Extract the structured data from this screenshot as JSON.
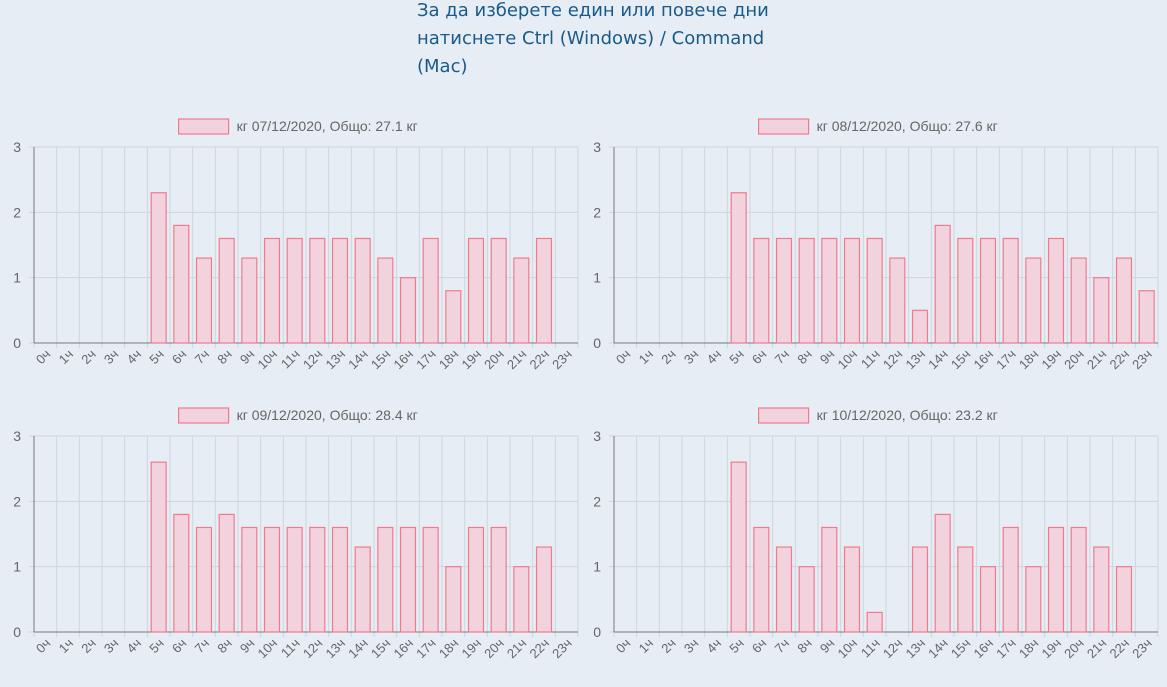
{
  "instructions": "За да изберете един или повече дни натиснете Ctrl (Windows) / Command (Mac)",
  "colors": {
    "bar_fill": "#f2d2dc",
    "bar_stroke": "#f07a8e",
    "grid": "#cfd5dc",
    "axis": "#7a7a7a",
    "text": "#666666"
  },
  "chart_data": [
    {
      "type": "bar",
      "title": "кг 07/12/2020, Общо: 27.1 кг",
      "categories": [
        "0ч",
        "1ч",
        "2ч",
        "3ч",
        "4ч",
        "5ч",
        "6ч",
        "7ч",
        "8ч",
        "9ч",
        "10ч",
        "11ч",
        "12ч",
        "13ч",
        "14ч",
        "15ч",
        "16ч",
        "17ч",
        "18ч",
        "19ч",
        "20ч",
        "21ч",
        "22ч",
        "23ч"
      ],
      "values": [
        0,
        0,
        0,
        0,
        0,
        2.3,
        1.8,
        1.3,
        1.6,
        1.3,
        1.6,
        1.6,
        1.6,
        1.6,
        1.6,
        1.3,
        1.0,
        1.6,
        0.8,
        1.6,
        1.6,
        1.3,
        1.6,
        0
      ],
      "y_ticks": [
        "0",
        "1",
        "2",
        "3"
      ],
      "ylim": [
        0,
        3
      ]
    },
    {
      "type": "bar",
      "title": "кг 08/12/2020, Общо: 27.6 кг",
      "categories": [
        "0ч",
        "1ч",
        "2ч",
        "3ч",
        "4ч",
        "5ч",
        "6ч",
        "7ч",
        "8ч",
        "9ч",
        "10ч",
        "11ч",
        "12ч",
        "13ч",
        "14ч",
        "15ч",
        "16ч",
        "17ч",
        "18ч",
        "19ч",
        "20ч",
        "21ч",
        "22ч",
        "23ч"
      ],
      "values": [
        0,
        0,
        0,
        0,
        0,
        2.3,
        1.6,
        1.6,
        1.6,
        1.6,
        1.6,
        1.6,
        1.3,
        0.5,
        1.8,
        1.6,
        1.6,
        1.6,
        1.3,
        1.6,
        1.3,
        1.0,
        1.3,
        0.8
      ],
      "y_ticks": [
        "0",
        "1",
        "2",
        "3"
      ],
      "ylim": [
        0,
        3
      ]
    },
    {
      "type": "bar",
      "title": "кг 09/12/2020, Общо: 28.4 кг",
      "categories": [
        "0ч",
        "1ч",
        "2ч",
        "3ч",
        "4ч",
        "5ч",
        "6ч",
        "7ч",
        "8ч",
        "9ч",
        "10ч",
        "11ч",
        "12ч",
        "13ч",
        "14ч",
        "15ч",
        "16ч",
        "17ч",
        "18ч",
        "19ч",
        "20ч",
        "21ч",
        "22ч",
        "23ч"
      ],
      "values": [
        0,
        0,
        0,
        0,
        0,
        2.6,
        1.8,
        1.6,
        1.8,
        1.6,
        1.6,
        1.6,
        1.6,
        1.6,
        1.3,
        1.6,
        1.6,
        1.6,
        1.0,
        1.6,
        1.6,
        1.0,
        1.3,
        0
      ],
      "y_ticks": [
        "0",
        "1",
        "2",
        "3"
      ],
      "ylim": [
        0,
        3
      ]
    },
    {
      "type": "bar",
      "title": "кг 10/12/2020, Общо: 23.2 кг",
      "categories": [
        "0ч",
        "1ч",
        "2ч",
        "3ч",
        "4ч",
        "5ч",
        "6ч",
        "7ч",
        "8ч",
        "9ч",
        "10ч",
        "11ч",
        "12ч",
        "13ч",
        "14ч",
        "15ч",
        "16ч",
        "17ч",
        "18ч",
        "19ч",
        "20ч",
        "21ч",
        "22ч",
        "23ч"
      ],
      "values": [
        0,
        0,
        0,
        0,
        0,
        2.6,
        1.6,
        1.3,
        1.0,
        1.6,
        1.3,
        0.3,
        0,
        1.3,
        1.8,
        1.3,
        1.0,
        1.6,
        1.0,
        1.6,
        1.6,
        1.3,
        1.0,
        0
      ],
      "y_ticks": [
        "0",
        "1",
        "2",
        "3"
      ],
      "ylim": [
        0,
        3
      ]
    }
  ]
}
